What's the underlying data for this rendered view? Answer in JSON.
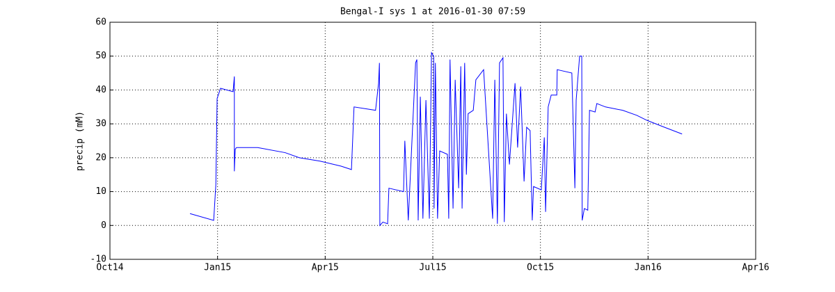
{
  "chart_data": {
    "type": "line",
    "title": "Bengal-I sys 1 at 2016-01-30 07:59",
    "y_label": "precip (mM)",
    "xlim": [
      2014.75,
      2016.25
    ],
    "xticks": [
      {
        "value": 2014.75,
        "label": "Oct14"
      },
      {
        "value": 2015.0,
        "label": "Jan15"
      },
      {
        "value": 2015.25,
        "label": "Apr15"
      },
      {
        "value": 2015.5,
        "label": "Jul15"
      },
      {
        "value": 2015.75,
        "label": "Oct15"
      },
      {
        "value": 2016.0,
        "label": "Jan16"
      },
      {
        "value": 2016.25,
        "label": "Apr16"
      }
    ],
    "ylim": [
      -10,
      60
    ],
    "yticks": [
      -10,
      0,
      10,
      20,
      30,
      40,
      50,
      60
    ],
    "grid": true,
    "x": [
      2014.936,
      2014.991,
      2014.996,
      2014.999,
      2015.007,
      2015.036,
      2015.039,
      2015.039,
      2015.041,
      2015.044,
      2015.093,
      2015.157,
      2015.19,
      2015.238,
      2015.287,
      2015.311,
      2015.317,
      2015.367,
      2015.374,
      2015.376,
      2015.377,
      2015.384,
      2015.395,
      2015.398,
      2015.432,
      2015.435,
      2015.443,
      2015.46,
      2015.463,
      2015.466,
      2015.471,
      2015.477,
      2015.484,
      2015.492,
      2015.497,
      2015.502,
      2015.503,
      2015.506,
      2015.511,
      2015.516,
      2015.534,
      2015.537,
      2015.54,
      2015.547,
      2015.552,
      2015.56,
      2015.565,
      2015.568,
      2015.574,
      2015.578,
      2015.582,
      2015.594,
      2015.6,
      2015.618,
      2015.639,
      2015.644,
      2015.65,
      2015.655,
      2015.663,
      2015.666,
      2015.671,
      2015.678,
      2015.691,
      2015.697,
      2015.704,
      2015.712,
      2015.718,
      2015.726,
      2015.731,
      2015.734,
      2015.752,
      2015.759,
      2015.762,
      2015.768,
      2015.775,
      2015.788,
      2015.789,
      2015.823,
      2015.83,
      2015.833,
      2015.841,
      2015.846,
      2015.847,
      2015.852,
      2015.86,
      2015.864,
      2015.877,
      2015.881,
      2015.901,
      2015.941,
      2015.974,
      2015.998,
      2016.038,
      2016.079
    ],
    "series": [
      {
        "color": "#0000ff",
        "values": [
          3.5,
          1.5,
          12,
          37.5,
          40.5,
          39.5,
          44,
          16,
          22.5,
          23,
          23,
          21.5,
          20,
          19,
          17.5,
          16.5,
          35,
          34,
          42,
          48,
          0,
          1,
          0.5,
          11,
          10,
          25,
          1.5,
          48,
          49,
          1.5,
          38,
          2,
          37,
          2,
          51,
          50,
          5,
          48,
          2,
          22,
          21,
          2,
          49,
          5,
          43,
          11,
          47,
          5,
          48,
          15,
          33,
          34,
          43,
          46,
          2,
          43,
          0.5,
          48,
          49.5,
          1,
          33,
          18,
          42,
          23,
          41,
          13,
          29,
          28,
          1.5,
          11.5,
          10.5,
          26,
          4,
          35,
          38.5,
          38.5,
          46,
          45,
          11,
          37,
          50,
          50,
          1.5,
          5,
          4.5,
          34,
          33.5,
          36,
          35,
          34,
          32.5,
          31,
          29,
          27
        ]
      }
    ]
  }
}
